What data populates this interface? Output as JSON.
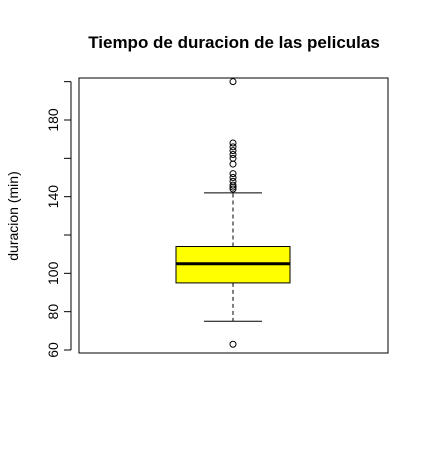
{
  "chart_data": {
    "type": "boxplot",
    "title": "Tiempo de duracion de las peliculas",
    "xlabel": "",
    "ylabel": "duracion (min)",
    "ylim": [
      58,
      205
    ],
    "y_ticks": [
      60,
      80,
      100,
      120,
      140,
      160,
      180,
      200
    ],
    "y_tick_labels": [
      "60",
      "80",
      "100",
      "",
      "140",
      "",
      "180",
      ""
    ],
    "box": {
      "min_whisker": 75,
      "q1": 95,
      "median": 105,
      "q3": 114,
      "max_whisker": 142
    },
    "outliers": [
      63,
      144,
      145,
      146,
      148,
      150,
      152,
      157,
      160,
      162,
      164,
      166,
      168,
      200
    ],
    "box_color": "#FFFF00",
    "grid": false
  }
}
